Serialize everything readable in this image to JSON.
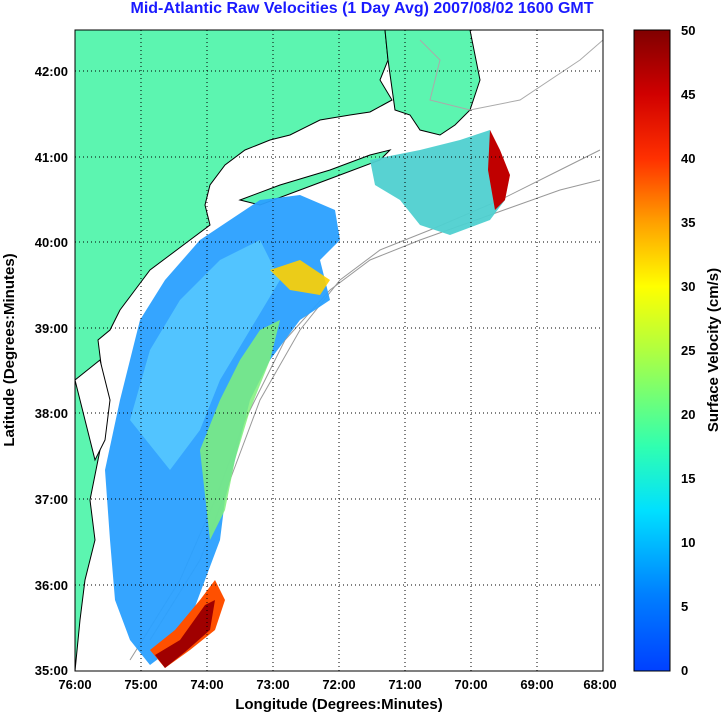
{
  "title": "Mid-Atlantic Raw Velocities (1 Day Avg) 2007/08/02 1600 GMT",
  "x_axis": {
    "label": "Longitude (Degrees:Minutes)",
    "ticks": [
      "76:00",
      "75:00",
      "74:00",
      "73:00",
      "72:00",
      "71:00",
      "70:00",
      "69:00",
      "68:00"
    ]
  },
  "y_axis": {
    "label": "Latitude (Degrees:Minutes)",
    "ticks": [
      "35:00",
      "36:00",
      "37:00",
      "38:00",
      "39:00",
      "40:00",
      "41:00",
      "42:00"
    ]
  },
  "colorbar": {
    "label": "Surface Velocity (cm/s)",
    "ticks": [
      "0",
      "5",
      "10",
      "15",
      "20",
      "25",
      "30",
      "35",
      "40",
      "45",
      "50"
    ],
    "min": 0,
    "max": 50
  },
  "colors": {
    "land": "#5cf5b0",
    "title": "#1a1aff",
    "grid": "#000000",
    "isobath": "#999999"
  }
}
